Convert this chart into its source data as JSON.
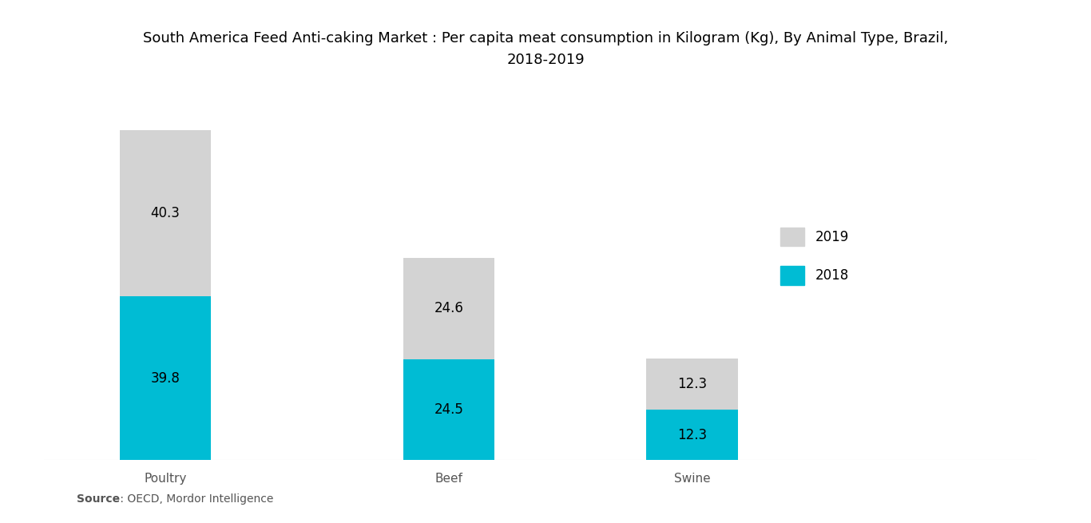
{
  "title_line1": "South America Feed Anti-caking Market : Per capita meat consumption in Kilogram (Kg), By Animal Type, Brazil,",
  "title_line2": "2018-2019",
  "categories": [
    "Poultry",
    "Beef",
    "Swine"
  ],
  "values_2018": [
    39.8,
    24.5,
    12.3
  ],
  "values_2019": [
    40.3,
    24.6,
    12.3
  ],
  "color_2018": "#00BCD4",
  "color_2019": "#D3D3D3",
  "background_color": "#FFFFFF",
  "title_fontsize": 13,
  "label_fontsize": 12,
  "tick_fontsize": 11,
  "legend_fontsize": 12,
  "source_bold": "Source",
  "source_rest": " : OECD, Mordor Intelligence",
  "bar_width": 0.45,
  "xlim": [
    -0.5,
    4.5
  ],
  "ylim": [
    0,
    90
  ]
}
